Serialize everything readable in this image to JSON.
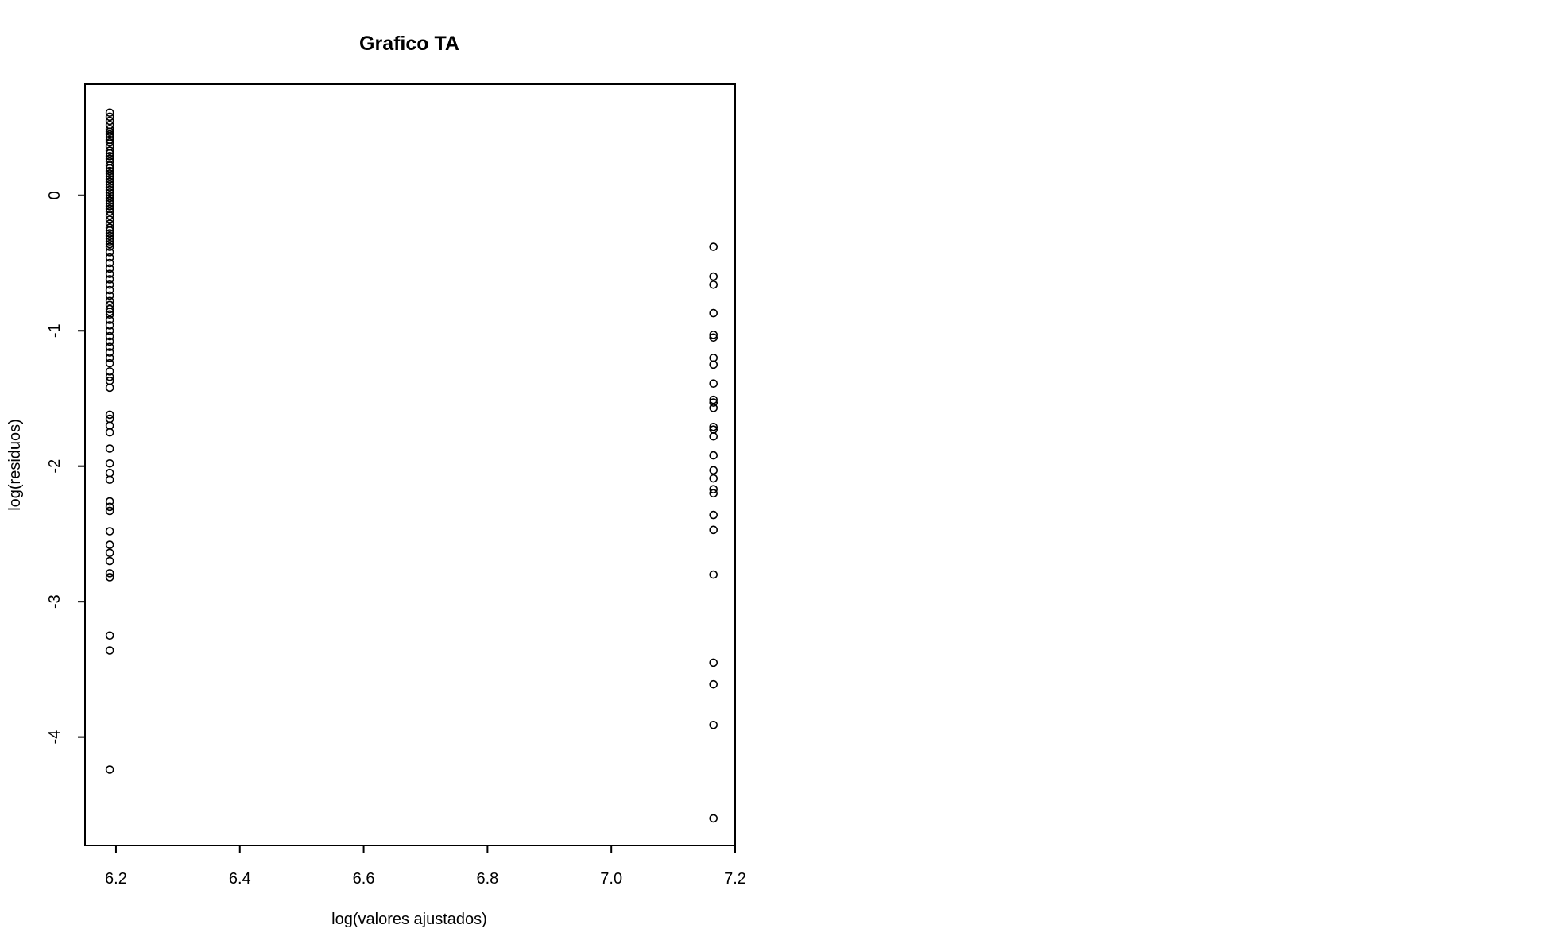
{
  "chart_data": {
    "type": "scatter",
    "title": "Grafico TA",
    "xlabel": "log(valores ajustados)",
    "ylabel": "log(residuos)",
    "xlim": [
      6.15,
      7.2
    ],
    "ylim": [
      -4.8,
      0.82
    ],
    "x_ticks": [
      6.2,
      6.4,
      6.6,
      6.8,
      7.0,
      7.2
    ],
    "x_tick_labels": [
      "6.2",
      "6.4",
      "6.6",
      "6.8",
      "7.0",
      "7.2"
    ],
    "y_ticks": [
      0,
      -1,
      -2,
      -3,
      -4
    ],
    "y_tick_labels": [
      "0",
      "-1",
      "-2",
      "-3",
      "-4"
    ],
    "grid": false,
    "legend": "none",
    "point_style": "open-circle",
    "color": "#000000",
    "series": [
      {
        "x_value": 6.19,
        "y": [
          0.61,
          0.58,
          0.55,
          0.52,
          0.49,
          0.47,
          0.45,
          0.43,
          0.41,
          0.39,
          0.36,
          0.33,
          0.31,
          0.29,
          0.27,
          0.25,
          0.22,
          0.2,
          0.18,
          0.16,
          0.14,
          0.12,
          0.1,
          0.08,
          0.06,
          0.04,
          0.02,
          0.0,
          -0.02,
          -0.04,
          -0.06,
          -0.08,
          -0.1,
          -0.12,
          -0.15,
          -0.18,
          -0.21,
          -0.24,
          -0.26,
          -0.28,
          -0.3,
          -0.32,
          -0.34,
          -0.36,
          -0.38,
          -0.42,
          -0.46,
          -0.5,
          -0.54,
          -0.58,
          -0.62,
          -0.66,
          -0.7,
          -0.74,
          -0.78,
          -0.81,
          -0.84,
          -0.86,
          -0.88,
          -0.92,
          -0.96,
          -1.0,
          -1.04,
          -1.08,
          -1.12,
          -1.16,
          -1.2,
          -1.24,
          -1.3,
          -1.34,
          -1.37,
          -1.42,
          -1.62,
          -1.65,
          -1.7,
          -1.75,
          -1.87,
          -1.98,
          -2.05,
          -2.1,
          -2.26,
          -2.3,
          -2.33,
          -2.48,
          -2.58,
          -2.64,
          -2.7,
          -2.79,
          -2.82,
          -3.25,
          -3.36,
          -4.24
        ]
      },
      {
        "x_value": 7.165,
        "y": [
          -0.38,
          -0.6,
          -0.66,
          -0.87,
          -1.03,
          -1.05,
          -1.2,
          -1.25,
          -1.39,
          -1.51,
          -1.53,
          -1.57,
          -1.71,
          -1.73,
          -1.78,
          -1.92,
          -2.03,
          -2.09,
          -2.17,
          -2.2,
          -2.36,
          -2.47,
          -2.8,
          -3.45,
          -3.61,
          -3.91,
          -4.6
        ]
      }
    ]
  }
}
